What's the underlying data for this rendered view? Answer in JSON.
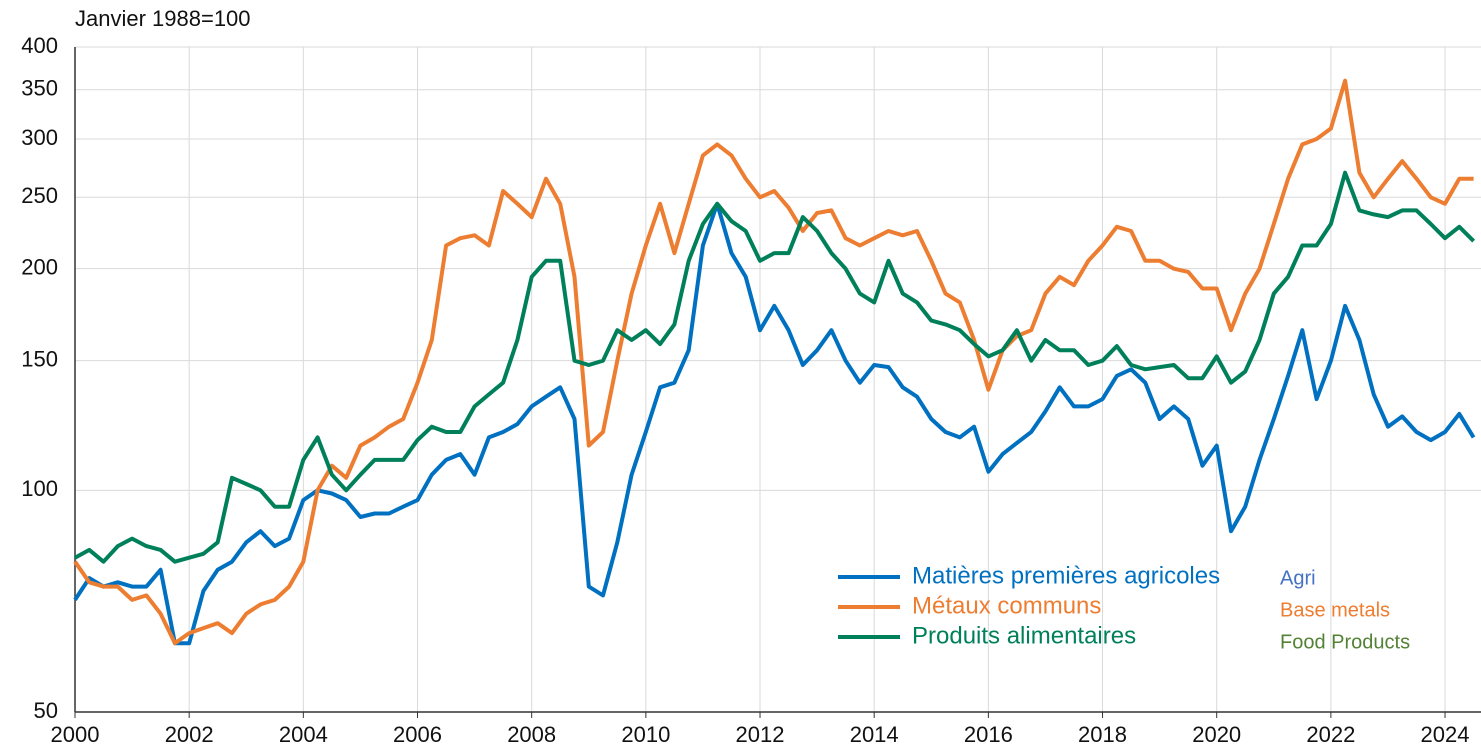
{
  "chart_data": {
    "type": "line",
    "ylabel": "Janvier 1988=100",
    "log_scale": true,
    "grid": true,
    "xlim": [
      2000,
      2024.63
    ],
    "xticks": [
      2000,
      2002,
      2004,
      2006,
      2008,
      2010,
      2012,
      2014,
      2016,
      2018,
      2020,
      2022,
      2024
    ],
    "ylim": [
      50,
      400
    ],
    "yticks": [
      50,
      100,
      150,
      200,
      250,
      300,
      350,
      400
    ],
    "legend_position": "lower right",
    "x": [
      2000,
      2000.25,
      2000.5,
      2000.75,
      2001,
      2001.25,
      2001.5,
      2001.75,
      2002,
      2002.25,
      2002.5,
      2002.75,
      2003,
      2003.25,
      2003.5,
      2003.75,
      2004,
      2004.25,
      2004.5,
      2004.75,
      2005,
      2005.25,
      2005.5,
      2005.75,
      2006,
      2006.25,
      2006.5,
      2006.75,
      2007,
      2007.25,
      2007.5,
      2007.75,
      2008,
      2008.25,
      2008.5,
      2008.75,
      2009,
      2009.25,
      2009.5,
      2009.75,
      2010,
      2010.25,
      2010.5,
      2010.75,
      2011,
      2011.25,
      2011.5,
      2011.75,
      2012,
      2012.25,
      2012.5,
      2012.75,
      2013,
      2013.25,
      2013.5,
      2013.75,
      2014,
      2014.25,
      2014.5,
      2014.75,
      2015,
      2015.25,
      2015.5,
      2015.75,
      2016,
      2016.25,
      2016.5,
      2016.75,
      2017,
      2017.25,
      2017.5,
      2017.75,
      2018,
      2018.25,
      2018.5,
      2018.75,
      2019,
      2019.25,
      2019.5,
      2019.75,
      2020,
      2020.25,
      2020.5,
      2020.75,
      2021,
      2021.25,
      2021.5,
      2021.75,
      2022,
      2022.25,
      2022.5,
      2022.75,
      2023,
      2023.25,
      2023.5,
      2023.75,
      2024,
      2024.25,
      2024.5
    ],
    "series": [
      {
        "name": "Matières premières agricoles",
        "color": "#0070c0",
        "translation": "Agri",
        "translation_color": "#4472c4",
        "values": [
          71,
          76,
          74,
          75,
          74,
          74,
          78,
          62,
          62,
          73,
          78,
          80,
          85,
          88,
          84,
          86,
          97,
          100,
          99,
          97,
          92,
          93,
          93,
          95,
          97,
          105,
          110,
          112,
          105,
          118,
          120,
          123,
          130,
          134,
          138,
          125,
          74,
          72,
          85,
          105,
          120,
          138,
          140,
          155,
          215,
          245,
          210,
          195,
          165,
          178,
          165,
          148,
          155,
          165,
          150,
          140,
          148,
          147,
          138,
          134,
          125,
          120,
          118,
          122,
          106,
          112,
          116,
          120,
          128,
          138,
          130,
          130,
          133,
          143,
          146,
          140,
          125,
          130,
          125,
          108,
          115,
          88,
          95,
          110,
          125,
          143,
          165,
          133,
          150,
          178,
          160,
          135,
          122,
          126,
          120,
          117,
          120,
          127,
          118
        ]
      },
      {
        "name": "Métaux communs",
        "color": "#ed7d31",
        "translation": "Base metals",
        "translation_color": "#ed7d31",
        "values": [
          80,
          75,
          74,
          74,
          71,
          72,
          68,
          62,
          64,
          65,
          66,
          64,
          68,
          70,
          71,
          74,
          80,
          100,
          108,
          104,
          115,
          118,
          122,
          125,
          140,
          160,
          215,
          220,
          222,
          215,
          255,
          245,
          235,
          265,
          245,
          195,
          115,
          120,
          150,
          185,
          215,
          245,
          210,
          245,
          285,
          295,
          285,
          265,
          250,
          255,
          242,
          225,
          238,
          240,
          220,
          215,
          220,
          225,
          222,
          225,
          205,
          185,
          180,
          160,
          137,
          155,
          162,
          165,
          185,
          195,
          190,
          205,
          215,
          228,
          225,
          205,
          205,
          200,
          198,
          188,
          188,
          165,
          185,
          200,
          230,
          265,
          295,
          300,
          310,
          360,
          270,
          250,
          265,
          280,
          265,
          250,
          245,
          265,
          265
        ]
      },
      {
        "name": "Produits alimentaires",
        "color": "#00805a",
        "translation": "Food Products",
        "translation_color": "#548235",
        "values": [
          81,
          83,
          80,
          84,
          86,
          84,
          83,
          80,
          81,
          82,
          85,
          104,
          102,
          100,
          95,
          95,
          110,
          118,
          105,
          100,
          105,
          110,
          110,
          110,
          117,
          122,
          120,
          120,
          130,
          135,
          140,
          160,
          195,
          205,
          205,
          150,
          148,
          150,
          165,
          160,
          165,
          158,
          168,
          205,
          230,
          245,
          232,
          225,
          205,
          210,
          210,
          235,
          225,
          210,
          200,
          185,
          180,
          205,
          185,
          180,
          170,
          168,
          165,
          158,
          152,
          155,
          165,
          150,
          160,
          155,
          155,
          148,
          150,
          157,
          148,
          146,
          147,
          148,
          142,
          142,
          152,
          140,
          145,
          160,
          185,
          195,
          215,
          215,
          230,
          270,
          240,
          237,
          235,
          240,
          240,
          230,
          220,
          228,
          218
        ]
      }
    ]
  }
}
